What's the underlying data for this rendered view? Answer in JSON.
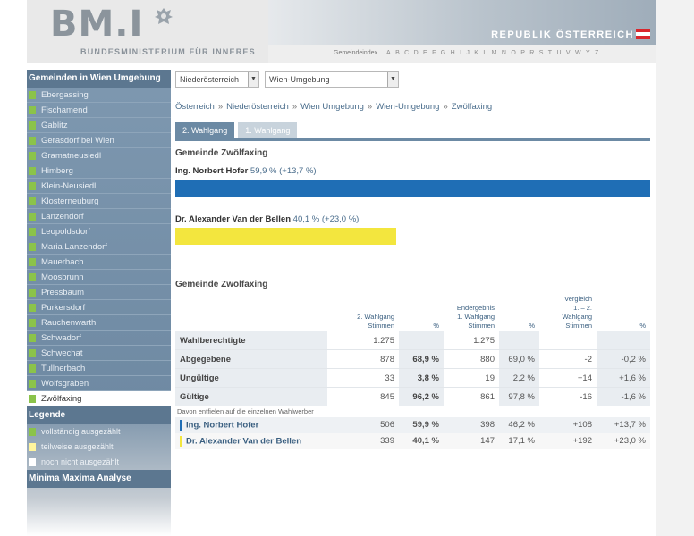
{
  "header": {
    "logo": "BM.I",
    "ministry": "BUNDESMINISTERIUM FÜR INNERES",
    "republik": "REPUBLIK ÖSTERREICH",
    "az_label": "Gemeindeindex",
    "az_letters": [
      "A",
      "B",
      "C",
      "D",
      "E",
      "F",
      "G",
      "H",
      "I",
      "J",
      "K",
      "L",
      "M",
      "N",
      "O",
      "P",
      "R",
      "S",
      "T",
      "U",
      "V",
      "W",
      "Y",
      "Z"
    ]
  },
  "sidebar": {
    "heading": "Gemeinden in Wien Umgebung",
    "items": [
      "Ebergassing",
      "Fischamend",
      "Gablitz",
      "Gerasdorf bei Wien",
      "Gramatneusiedl",
      "Himberg",
      "Klein-Neusiedl",
      "Klosterneuburg",
      "Lanzendorf",
      "Leopoldsdorf",
      "Maria Lanzendorf",
      "Mauerbach",
      "Moosbrunn",
      "Pressbaum",
      "Purkersdorf",
      "Rauchenwarth",
      "Schwadorf",
      "Schwechat",
      "Tullnerbach",
      "Wolfsgraben",
      "Zwölfaxing"
    ],
    "active": "Zwölfaxing",
    "legend_heading": "Legende",
    "legend": [
      {
        "label": "vollständig ausgezählt",
        "color": "#8bc34a"
      },
      {
        "label": "teilweise ausgezählt",
        "color": "#fff59d"
      },
      {
        "label": "noch nicht ausgezählt",
        "color": "#ffffff"
      }
    ],
    "minmax": "Minima Maxima Analyse"
  },
  "main": {
    "select_state": "Niederösterreich",
    "select_district": "Wien-Umgebung",
    "breadcrumb": [
      "Österreich",
      "Niederösterreich",
      "Wien Umgebung",
      "Wien-Umgebung",
      "Zwölfaxing"
    ],
    "breadcrumb_sep": "»",
    "tabs": [
      "2. Wahlgang",
      "1. Wahlgang"
    ],
    "gemeinde_title": "Gemeinde Zwölfaxing",
    "candidates": [
      {
        "name": "Ing. Norbert Hofer",
        "result": "59,9 % (+13,7 %)",
        "share": 59.9,
        "color": "#1f6eb5"
      },
      {
        "name": "Dr. Alexander Van der Bellen",
        "result": "40,1 % (+23,0 %)",
        "share": 40.1,
        "color": "#f3e63e"
      }
    ],
    "table_title": "Gemeinde Zwölfaxing",
    "headers": {
      "g1_line1": "2. Wahlgang",
      "g1_line2": "Stimmen",
      "pct": "%",
      "g2_line0": "Endergebnis",
      "g2_line1": "1. Wahlgang",
      "g2_line2": "Stimmen",
      "g3_line0": "Vergleich",
      "g3_line1": "1. – 2. Wahlgang",
      "g3_line2": "Stimmen"
    },
    "rows": [
      {
        "label": "Wahlberechtigte",
        "v1": "1.275",
        "p1": "",
        "v2": "1.275",
        "p2": "",
        "v3": "",
        "p3": ""
      },
      {
        "label": "Abgegebene",
        "v1": "878",
        "p1": "68,9 %",
        "v2": "880",
        "p2": "69,0 %",
        "v3": "-2",
        "p3": "-0,2 %"
      },
      {
        "label": "Ungültige",
        "v1": "33",
        "p1": "3,8 %",
        "v2": "19",
        "p2": "2,2 %",
        "v3": "+14",
        "p3": "+1,6 %"
      },
      {
        "label": "Gültige",
        "v1": "845",
        "p1": "96,2 %",
        "v2": "861",
        "p2": "97,8 %",
        "v3": "-16",
        "p3": "-1,6 %"
      }
    ],
    "sub_note": "Davon entfielen auf die einzelnen Wahlwerber",
    "cand_rows": [
      {
        "label": "Ing. Norbert Hofer",
        "v1": "506",
        "p1": "59,9 %",
        "v2": "398",
        "p2": "46,2 %",
        "v3": "+108",
        "p3": "+13,7 %",
        "color": "#1f6eb5"
      },
      {
        "label": "Dr. Alexander Van der Bellen",
        "v1": "339",
        "p1": "40,1 %",
        "v2": "147",
        "p2": "17,1 %",
        "v3": "+192",
        "p3": "+23,0 %",
        "color": "#f3e63e"
      }
    ]
  }
}
